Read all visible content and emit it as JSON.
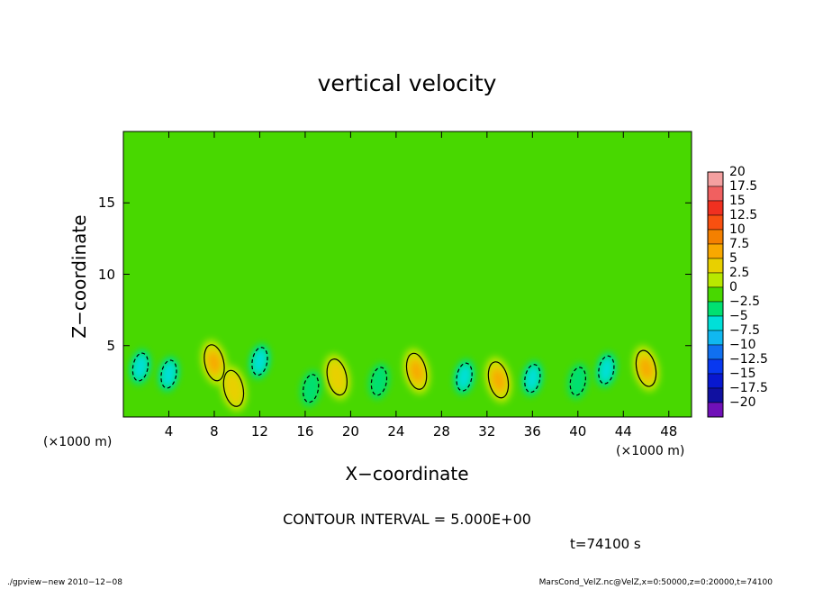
{
  "chart_data": {
    "type": "heatmap",
    "title": "vertical velocity",
    "xlabel": "X−coordinate",
    "ylabel": "Z−coordinate",
    "x_unit_left": "(×1000 m)",
    "x_unit_right": "(×1000 m)",
    "xlim": [
      0,
      50
    ],
    "ylim": [
      0,
      20
    ],
    "x_ticks": [
      4,
      8,
      12,
      16,
      20,
      24,
      28,
      32,
      36,
      40,
      44,
      48
    ],
    "y_ticks": [
      5,
      10,
      15
    ],
    "colorbar": {
      "levels": [
        "20",
        "17.5",
        "15",
        "12.5",
        "10",
        "7.5",
        "5",
        "2.5",
        "0",
        "−2.5",
        "−5",
        "−7.5",
        "−10",
        "−12.5",
        "−15",
        "−17.5",
        "−20"
      ],
      "colors": [
        "#f4a0a0",
        "#f06060",
        "#f03020",
        "#f85010",
        "#f48000",
        "#f8a800",
        "#e8d000",
        "#b8e800",
        "#48d800",
        "#00e070",
        "#00e0d8",
        "#10b8f0",
        "#1070f0",
        "#0838f0",
        "#0818d0",
        "#1010a0",
        "#7010b8"
      ]
    },
    "background_level": "0",
    "features": [
      {
        "kind": "updraft",
        "x": 8.0,
        "z": 3.8,
        "peak": 7.5
      },
      {
        "kind": "updraft",
        "x": 9.7,
        "z": 2.0,
        "peak": 5
      },
      {
        "kind": "updraft",
        "x": 18.8,
        "z": 2.8,
        "peak": 5
      },
      {
        "kind": "updraft",
        "x": 25.8,
        "z": 3.2,
        "peak": 7.5
      },
      {
        "kind": "updraft",
        "x": 33.0,
        "z": 2.6,
        "peak": 7.5
      },
      {
        "kind": "updraft",
        "x": 46.0,
        "z": 3.4,
        "peak": 7.5
      },
      {
        "kind": "downdraft",
        "x": 1.5,
        "z": 3.5,
        "peak": -5
      },
      {
        "kind": "downdraft",
        "x": 4.0,
        "z": 3.0,
        "peak": -5
      },
      {
        "kind": "downdraft",
        "x": 12.0,
        "z": 3.9,
        "peak": -5
      },
      {
        "kind": "downdraft",
        "x": 16.5,
        "z": 2.0,
        "peak": -2.5
      },
      {
        "kind": "downdraft",
        "x": 22.5,
        "z": 2.5,
        "peak": -2.5
      },
      {
        "kind": "downdraft",
        "x": 30.0,
        "z": 2.8,
        "peak": -5
      },
      {
        "kind": "downdraft",
        "x": 36.0,
        "z": 2.7,
        "peak": -5
      },
      {
        "kind": "downdraft",
        "x": 40.0,
        "z": 2.5,
        "peak": -2.5
      },
      {
        "kind": "downdraft",
        "x": 42.5,
        "z": 3.3,
        "peak": -5
      }
    ],
    "contour_interval_text": "CONTOUR INTERVAL = 5.000E+00",
    "time_text": "t=74100 s"
  },
  "footer": {
    "left": "./gpview−new   2010−12−08",
    "right": "MarsCond_VelZ.nc@VelZ,x=0:50000,z=0:20000,t=74100"
  },
  "colors": {
    "background_field": "#48d800",
    "frame": "#000000"
  }
}
